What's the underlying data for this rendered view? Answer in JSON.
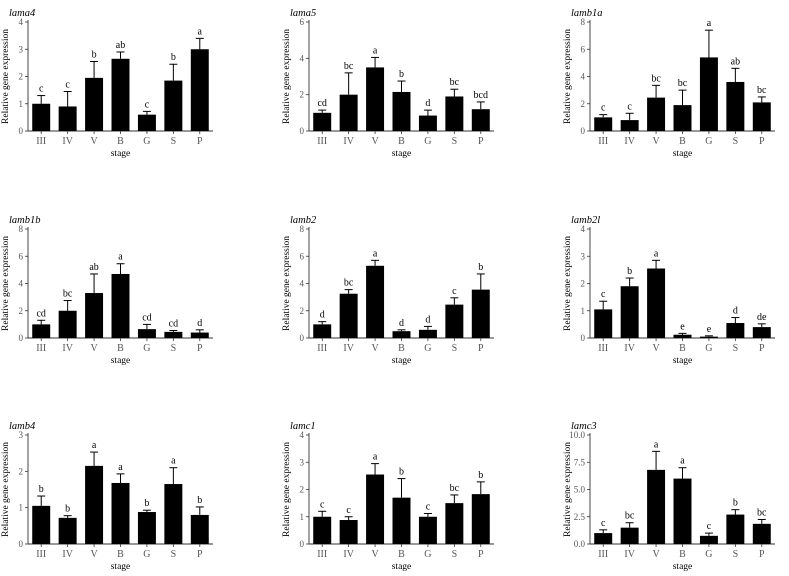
{
  "chart_data": [
    {
      "type": "bar",
      "title": "lama4",
      "xlabel": "stage",
      "ylabel": "Relative gene expression",
      "categories": [
        "III",
        "IV",
        "V",
        "B",
        "G",
        "S",
        "P"
      ],
      "values": [
        1.0,
        0.9,
        1.95,
        2.65,
        0.6,
        1.85,
        3.0
      ],
      "errors": [
        0.3,
        0.55,
        0.6,
        0.25,
        0.12,
        0.6,
        0.4
      ],
      "letters": [
        "c",
        "c",
        "b",
        "ab",
        "c",
        "b",
        "a"
      ],
      "ylim": [
        0,
        4
      ],
      "yticks": [
        "0",
        "1",
        "2",
        "3",
        "4"
      ]
    },
    {
      "type": "bar",
      "title": "lama5",
      "xlabel": "stage",
      "ylabel": "Relative gene expression",
      "categories": [
        "III",
        "IV",
        "V",
        "B",
        "G",
        "S",
        "P"
      ],
      "values": [
        1.0,
        2.0,
        3.5,
        2.15,
        0.85,
        1.9,
        1.2
      ],
      "errors": [
        0.15,
        1.2,
        0.55,
        0.6,
        0.3,
        0.4,
        0.4
      ],
      "letters": [
        "cd",
        "bc",
        "a",
        "b",
        "d",
        "bc",
        "bcd"
      ],
      "ylim": [
        0,
        6
      ],
      "yticks": [
        "0",
        "2",
        "4",
        "6"
      ]
    },
    {
      "type": "bar",
      "title": "lamb1a",
      "xlabel": "stage",
      "ylabel": "Relative gene expression",
      "categories": [
        "III",
        "IV",
        "V",
        "B",
        "G",
        "S",
        "P"
      ],
      "values": [
        1.0,
        0.8,
        2.45,
        1.9,
        5.4,
        3.6,
        2.1
      ],
      "errors": [
        0.2,
        0.5,
        0.9,
        1.1,
        2.0,
        1.0,
        0.4
      ],
      "letters": [
        "c",
        "c",
        "bc",
        "bc",
        "a",
        "ab",
        "bc"
      ],
      "ylim": [
        0,
        8
      ],
      "yticks": [
        "0",
        "2",
        "4",
        "6",
        "8"
      ]
    },
    {
      "type": "bar",
      "title": "lamb1b",
      "xlabel": "stage",
      "ylabel": "Relative gene expression",
      "categories": [
        "III",
        "IV",
        "V",
        "B",
        "G",
        "S",
        "P"
      ],
      "values": [
        1.0,
        2.0,
        3.3,
        4.7,
        0.65,
        0.45,
        0.4
      ],
      "errors": [
        0.3,
        0.75,
        1.4,
        0.75,
        0.35,
        0.1,
        0.2
      ],
      "letters": [
        "cd",
        "bc",
        "ab",
        "a",
        "cd",
        "cd",
        "d"
      ],
      "ylim": [
        0,
        8
      ],
      "yticks": [
        "0",
        "2",
        "4",
        "6",
        "8"
      ]
    },
    {
      "type": "bar",
      "title": "lamb2",
      "xlabel": "stage",
      "ylabel": "Relative gene expression",
      "categories": [
        "III",
        "IV",
        "V",
        "B",
        "G",
        "S",
        "P"
      ],
      "values": [
        1.0,
        3.25,
        5.3,
        0.5,
        0.6,
        2.45,
        3.55
      ],
      "errors": [
        0.2,
        0.3,
        0.4,
        0.1,
        0.25,
        0.5,
        1.15
      ],
      "letters": [
        "d",
        "bc",
        "a",
        "d",
        "d",
        "c",
        "b"
      ],
      "ylim": [
        0,
        8
      ],
      "yticks": [
        "0",
        "2",
        "4",
        "6",
        "8"
      ]
    },
    {
      "type": "bar",
      "title": "lamb2l",
      "xlabel": "stage",
      "ylabel": "Relative gene expression",
      "categories": [
        "III",
        "IV",
        "V",
        "B",
        "G",
        "S",
        "P"
      ],
      "values": [
        1.05,
        1.9,
        2.55,
        0.12,
        0.05,
        0.55,
        0.4
      ],
      "errors": [
        0.3,
        0.3,
        0.3,
        0.05,
        0.03,
        0.2,
        0.12
      ],
      "letters": [
        "c",
        "b",
        "a",
        "e",
        "e",
        "d",
        "de"
      ],
      "ylim": [
        0,
        4
      ],
      "yticks": [
        "0",
        "1",
        "2",
        "3",
        "4"
      ]
    },
    {
      "type": "bar",
      "title": "lamb4",
      "xlabel": "stage",
      "ylabel": "Relative gene expression",
      "categories": [
        "III",
        "IV",
        "V",
        "B",
        "G",
        "S",
        "P"
      ],
      "values": [
        1.05,
        0.72,
        2.15,
        1.68,
        0.88,
        1.65,
        0.8
      ],
      "errors": [
        0.27,
        0.06,
        0.38,
        0.25,
        0.05,
        0.45,
        0.22
      ],
      "letters": [
        "b",
        "b",
        "a",
        "a",
        "b",
        "a",
        "b"
      ],
      "ylim": [
        0,
        3
      ],
      "yticks": [
        "0",
        "1",
        "2",
        "3"
      ]
    },
    {
      "type": "bar",
      "title": "lamc1",
      "xlabel": "stage",
      "ylabel": "Relative gene expression",
      "categories": [
        "III",
        "IV",
        "V",
        "B",
        "G",
        "S",
        "P"
      ],
      "values": [
        1.0,
        0.88,
        2.55,
        1.7,
        1.0,
        1.5,
        1.83
      ],
      "errors": [
        0.2,
        0.12,
        0.4,
        0.7,
        0.12,
        0.3,
        0.45
      ],
      "letters": [
        "c",
        "c",
        "a",
        "b",
        "c",
        "bc",
        "b"
      ],
      "ylim": [
        0,
        4
      ],
      "yticks": [
        "0",
        "1",
        "2",
        "3",
        "4"
      ]
    },
    {
      "type": "bar",
      "title": "lamc3",
      "xlabel": "stage",
      "ylabel": "Relative gene expression",
      "categories": [
        "III",
        "IV",
        "V",
        "B",
        "G",
        "S",
        "P"
      ],
      "values": [
        1.0,
        1.5,
        6.8,
        6.0,
        0.75,
        2.7,
        1.85
      ],
      "errors": [
        0.3,
        0.45,
        1.7,
        1.0,
        0.25,
        0.45,
        0.4
      ],
      "letters": [
        "c",
        "bc",
        "a",
        "a",
        "c",
        "b",
        "bc"
      ],
      "ylim": [
        0,
        10
      ],
      "yticks": [
        "0.0",
        "2.5",
        "5.0",
        "7.5",
        "10.0"
      ]
    }
  ]
}
